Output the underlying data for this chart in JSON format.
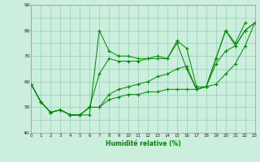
{
  "xlabel": "Humidité relative (%)",
  "background_color": "#cceedd",
  "grid_color": "#99ccbb",
  "line_color": "#008800",
  "x_values": [
    0,
    1,
    2,
    3,
    4,
    5,
    6,
    7,
    8,
    9,
    10,
    11,
    12,
    13,
    14,
    15,
    16,
    17,
    18,
    19,
    20,
    21,
    22,
    23
  ],
  "series": [
    [
      59,
      52,
      48,
      49,
      47,
      47,
      47,
      80,
      72,
      70,
      70,
      69,
      69,
      70,
      69,
      76,
      73,
      58,
      58,
      69,
      80,
      75,
      83,
      null
    ],
    [
      59,
      52,
      48,
      49,
      47,
      47,
      50,
      63,
      69,
      68,
      68,
      68,
      69,
      69,
      69,
      75,
      65,
      57,
      58,
      69,
      80,
      74,
      80,
      83
    ],
    [
      59,
      52,
      48,
      49,
      47,
      47,
      50,
      50,
      55,
      57,
      58,
      59,
      60,
      62,
      63,
      65,
      66,
      57,
      58,
      67,
      72,
      74,
      80,
      83
    ],
    [
      59,
      52,
      48,
      49,
      47,
      47,
      50,
      50,
      53,
      54,
      55,
      55,
      56,
      56,
      57,
      57,
      57,
      57,
      58,
      59,
      63,
      67,
      74,
      83
    ]
  ],
  "ylim": [
    40,
    90
  ],
  "xlim": [
    0,
    23
  ],
  "yticks": [
    40,
    45,
    50,
    55,
    60,
    65,
    70,
    75,
    80,
    85,
    90
  ],
  "ytick_labels": [
    "40",
    "",
    "50",
    "",
    "60",
    "",
    "70",
    "",
    "80",
    "",
    "90"
  ],
  "xticks": [
    0,
    1,
    2,
    3,
    4,
    5,
    6,
    7,
    8,
    9,
    10,
    11,
    12,
    13,
    14,
    15,
    16,
    17,
    18,
    19,
    20,
    21,
    22,
    23
  ]
}
